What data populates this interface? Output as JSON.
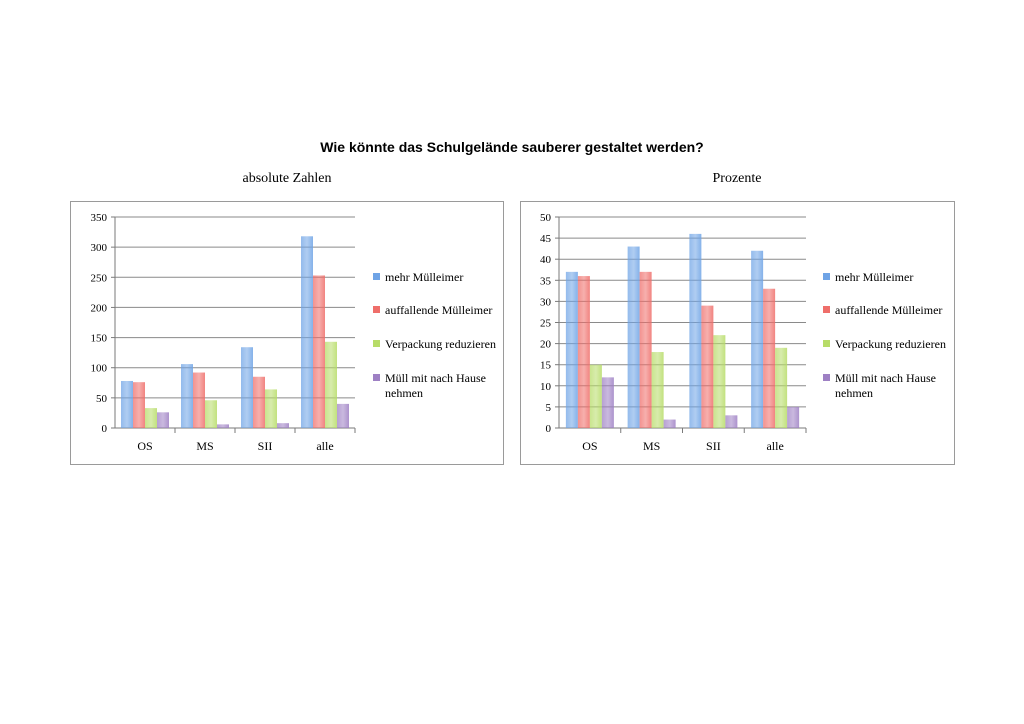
{
  "title": "Wie könnte das Schulgelände sauberer gestaltet werden?",
  "colors": {
    "mehr_muelleimer": "#6fa4e6",
    "auffallende_muelleimer": "#ef6e6a",
    "verpackung": "#b7dc68",
    "muell_nach_hause": "#9e80c4"
  },
  "chart_data": [
    {
      "type": "bar",
      "title": "absolute Zahlen",
      "categories": [
        "OS",
        "MS",
        "SII",
        "alle"
      ],
      "ylim": [
        0,
        350
      ],
      "yticks": [
        0,
        50,
        100,
        150,
        200,
        250,
        300,
        350
      ],
      "grid": true,
      "legend_position": "right",
      "series": [
        {
          "name": "mehr Mülleimer",
          "values": [
            78,
            106,
            134,
            318
          ]
        },
        {
          "name": "auffallende Mülleimer",
          "values": [
            76,
            92,
            85,
            253
          ]
        },
        {
          "name": "Verpackung reduzieren",
          "values": [
            33,
            46,
            64,
            143
          ]
        },
        {
          "name": "Müll mit nach Hause nehmen",
          "values": [
            26,
            6,
            8,
            40
          ]
        }
      ]
    },
    {
      "type": "bar",
      "title": "Prozente",
      "categories": [
        "OS",
        "MS",
        "SII",
        "alle"
      ],
      "ylim": [
        0,
        50
      ],
      "yticks": [
        0,
        5,
        10,
        15,
        20,
        25,
        30,
        35,
        40,
        45,
        50
      ],
      "grid": true,
      "legend_position": "right",
      "series": [
        {
          "name": "mehr Mülleimer",
          "values": [
            37,
            43,
            46,
            42
          ]
        },
        {
          "name": "auffallende Mülleimer",
          "values": [
            36,
            37,
            29,
            33
          ]
        },
        {
          "name": "Verpackung reduzieren",
          "values": [
            15,
            18,
            22,
            19
          ]
        },
        {
          "name": "Müll mit nach Hause nehmen",
          "values": [
            12,
            2,
            3,
            5
          ]
        }
      ]
    }
  ]
}
